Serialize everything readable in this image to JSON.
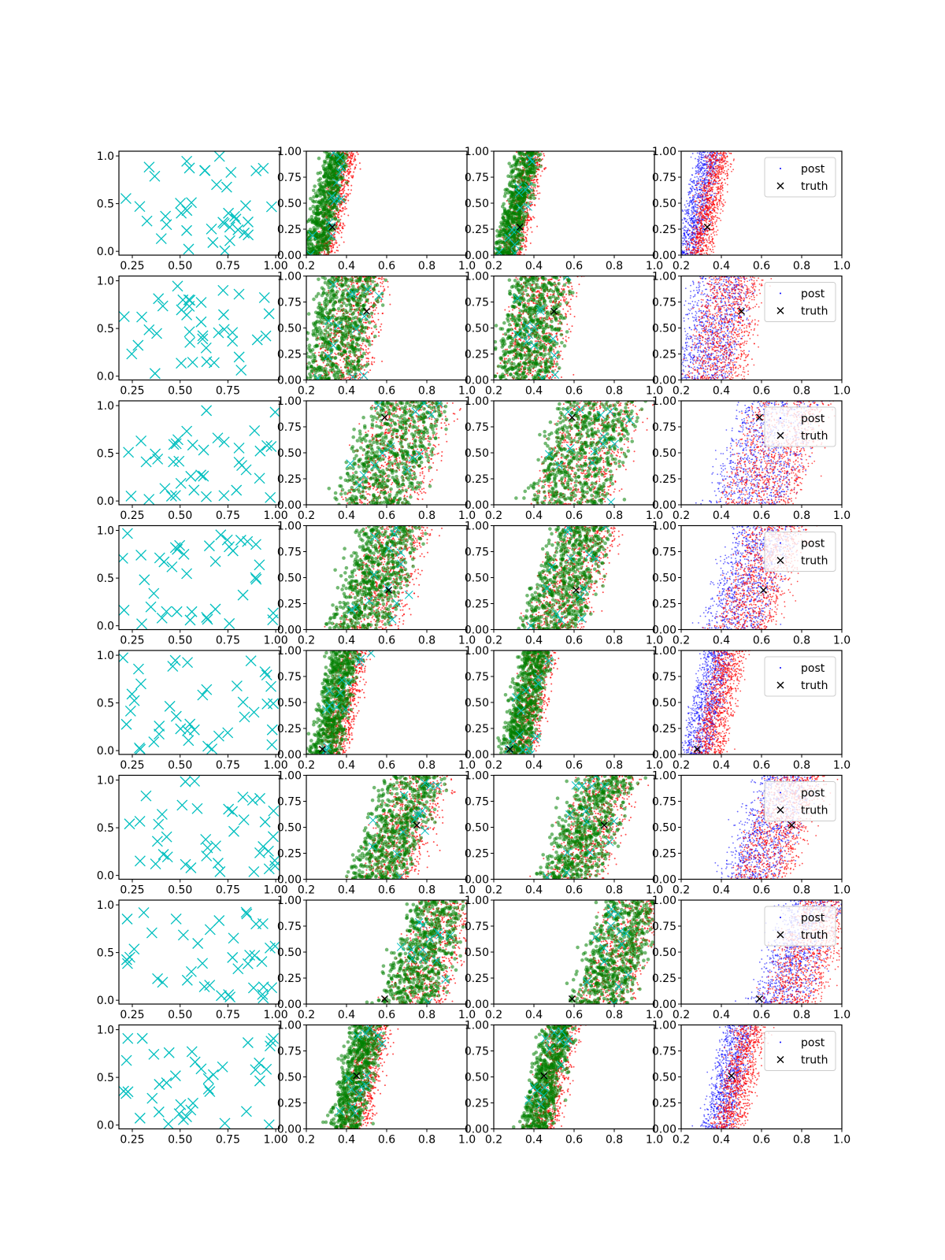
{
  "colors": {
    "input_markers": "#00BFBF",
    "posterior_red": "#FF0000",
    "posterior_green": "#008000",
    "posterior_blue": "#0000FF",
    "truth_marker": "#000000"
  },
  "legend": {
    "post_label": "post",
    "truth_label": "truth"
  },
  "column_axes": [
    {
      "xlim": [
        0.18,
        1.02
      ],
      "ylim": [
        -0.04,
        1.05
      ],
      "xticks": [
        "0.25",
        "0.50",
        "0.75",
        "1.00"
      ],
      "yticks": [
        "0.0",
        "0.5",
        "1.0"
      ]
    },
    {
      "xlim": [
        0.2,
        1.0
      ],
      "ylim": [
        0.0,
        1.0
      ],
      "xticks": [
        "0.2",
        "0.4",
        "0.6",
        "0.8",
        "1.0"
      ],
      "yticks": [
        "0.00",
        "0.25",
        "0.50",
        "0.75",
        "1.00"
      ]
    }
  ],
  "chart_data": {
    "type": "scatter",
    "grid": false,
    "layout": "8 rows x 4 columns",
    "legend_location": "upper right of last column",
    "rows": [
      {
        "truth": [
          0.33,
          0.27
        ],
        "band": [
          0.22,
          0.32
        ],
        "slope": 0.11,
        "spread": 0.05,
        "row2_xticks": [
          "0.25",
          "0.50",
          "0.75",
          "1.00"
        ]
      },
      {
        "truth": [
          0.5,
          0.66
        ],
        "band": [
          0.22,
          0.48
        ],
        "slope": 0.1,
        "spread": 0.08,
        "row2_xticks": [
          "0.25",
          "0.50",
          "0.75"
        ]
      },
      {
        "truth": [
          0.59,
          0.84
        ],
        "band": [
          0.38,
          0.74
        ],
        "slope": 0.18,
        "spread": 0.1,
        "row2_xticks": [
          "0.25",
          "0.50",
          "0.75",
          "1.00"
        ]
      },
      {
        "truth": [
          0.61,
          0.38
        ],
        "band": [
          0.35,
          0.62
        ],
        "slope": 0.18,
        "spread": 0.09,
        "row2_xticks": [
          "0.25",
          "0.50",
          "0.75",
          "1.00"
        ]
      },
      {
        "truth": [
          0.28,
          0.05
        ],
        "band": [
          0.25,
          0.38
        ],
        "slope": 0.11,
        "spread": 0.05,
        "row2_xticks": [
          "0.25",
          "0.50",
          "0.75",
          "1.00"
        ]
      },
      {
        "truth": [
          0.75,
          0.52
        ],
        "band": [
          0.45,
          0.7
        ],
        "slope": 0.2,
        "spread": 0.1,
        "row2_xticks": [
          "0.25",
          "0.50",
          "0.75",
          "1.00"
        ]
      },
      {
        "truth": [
          0.59,
          0.05
        ],
        "band": [
          0.6,
          0.85
        ],
        "slope": 0.18,
        "spread": 0.1,
        "row2_xticks": [
          "0.25",
          "0.50",
          "0.75",
          "1.00"
        ]
      },
      {
        "truth": [
          0.45,
          0.51
        ],
        "band": [
          0.35,
          0.48
        ],
        "slope": 0.12,
        "spread": 0.06,
        "row2_xticks": [
          "0.25",
          "0.50",
          "0.75",
          "1.00"
        ]
      }
    ],
    "input_points_per_row": 40
  }
}
